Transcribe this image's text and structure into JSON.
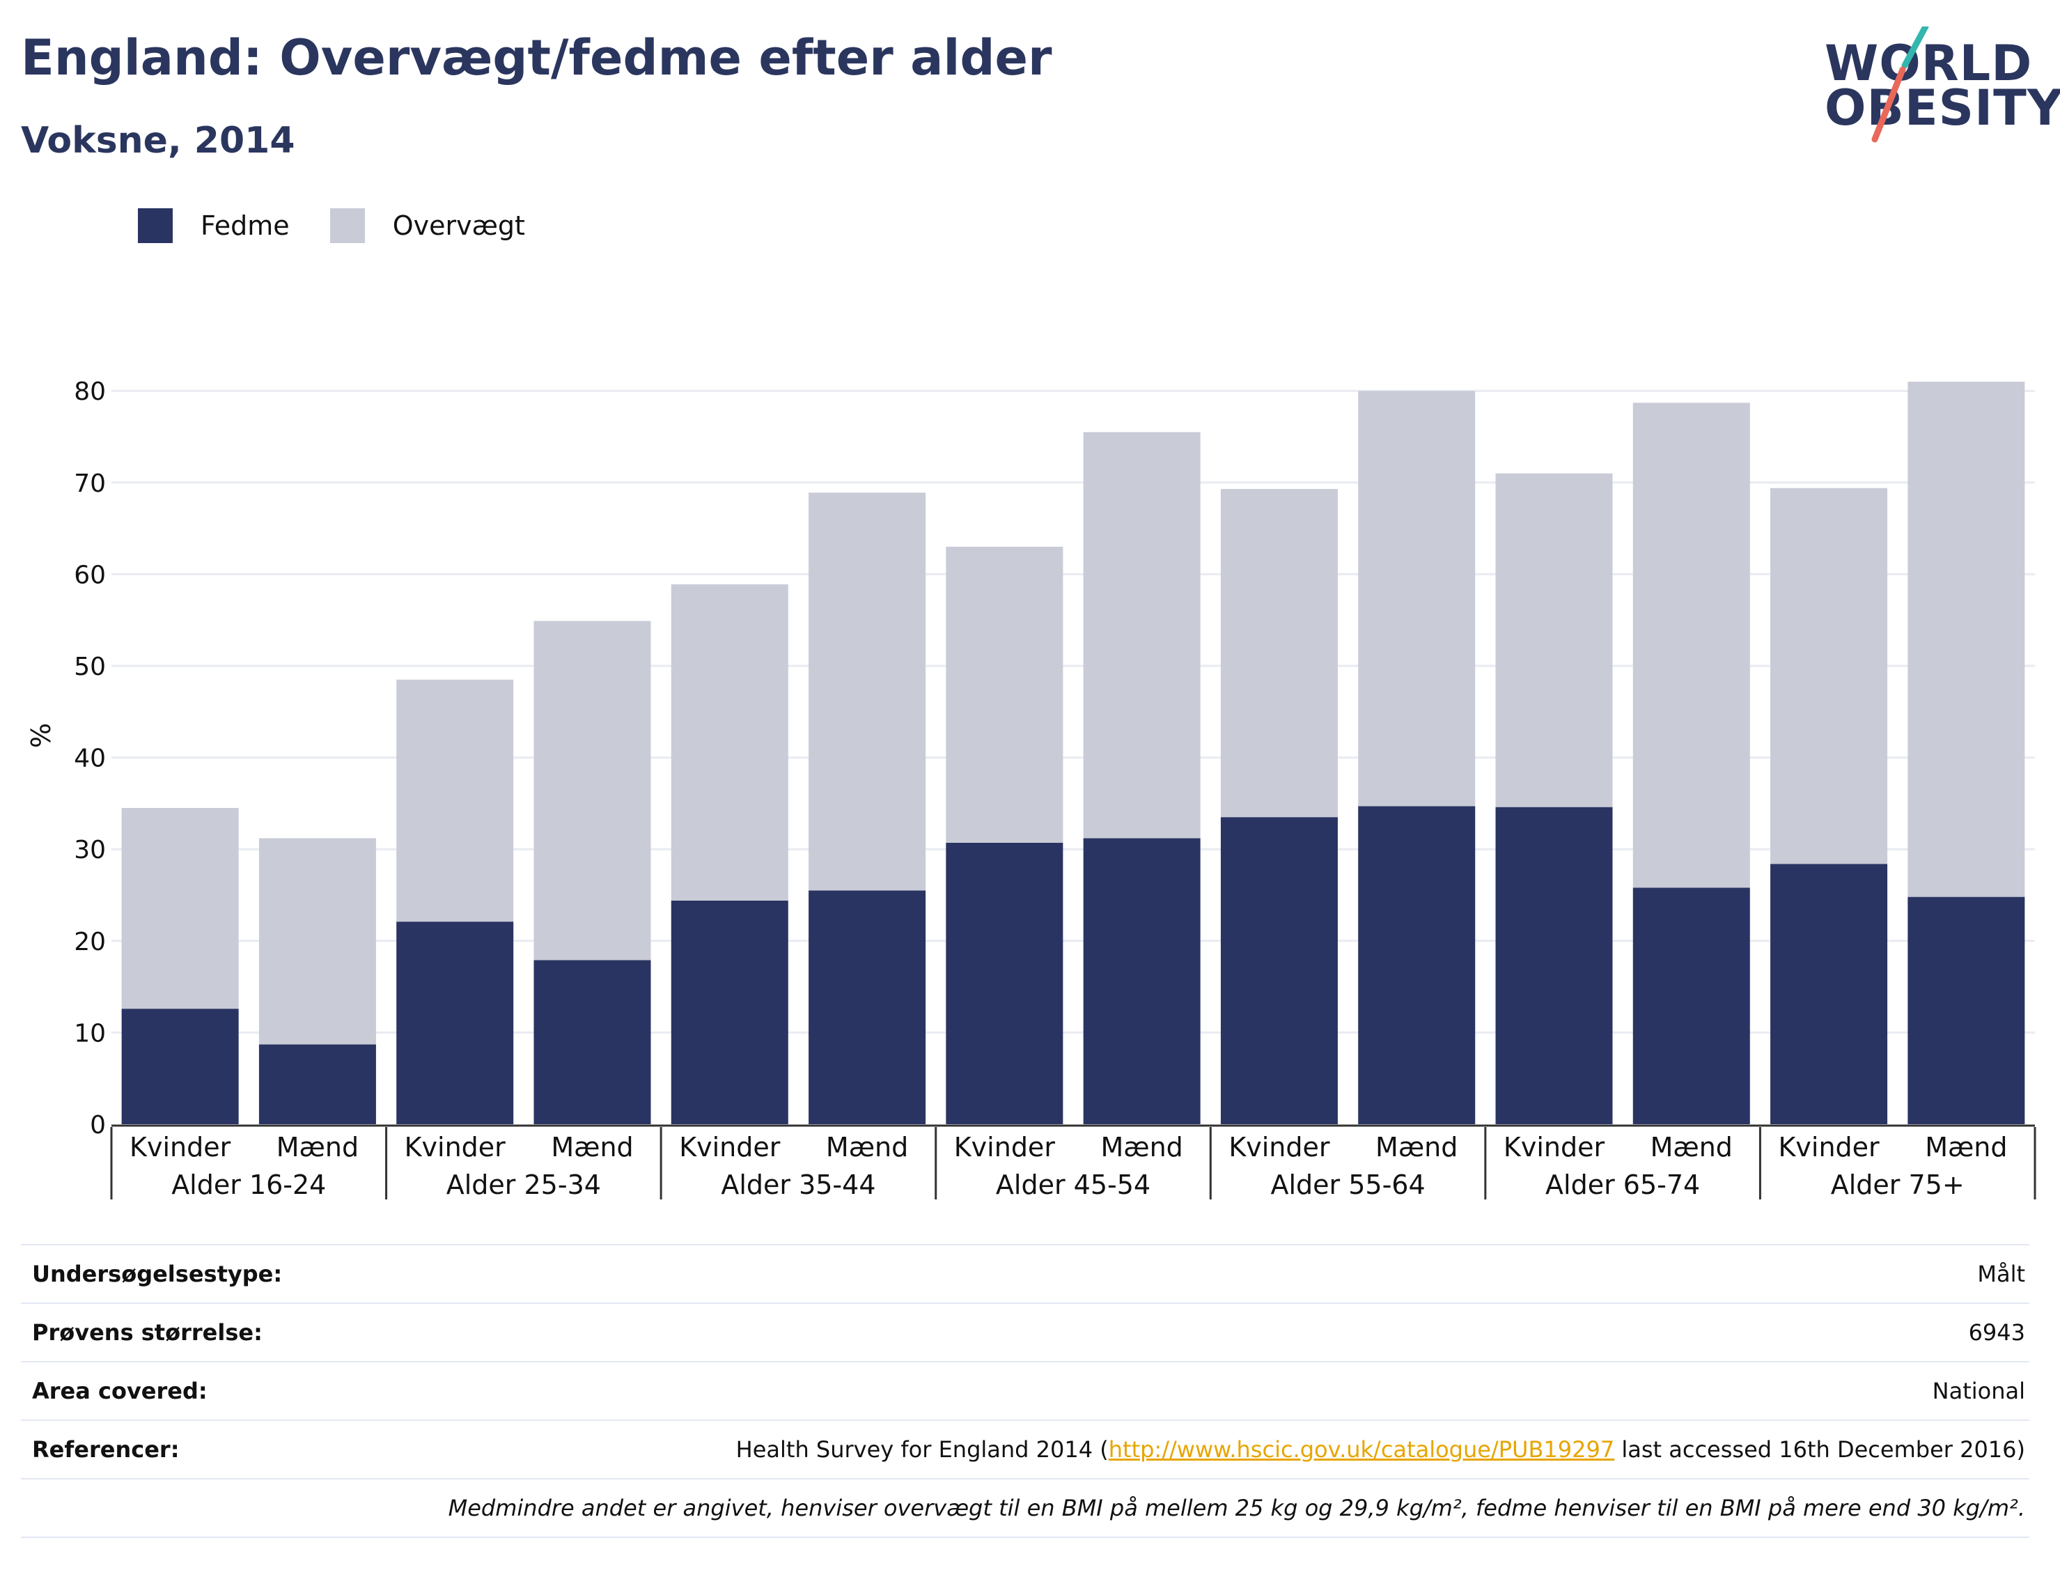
{
  "header": {
    "title": "England: Overvægt/fedme efter alder",
    "subtitle": "Voksne, 2014"
  },
  "logo": {
    "line1": "WORLD",
    "line2": "OBESITY"
  },
  "chart_data": {
    "type": "bar",
    "stacked": true,
    "ylabel": "%",
    "ylim": [
      0,
      85
    ],
    "yticks": [
      0,
      10,
      20,
      30,
      40,
      50,
      60,
      70,
      80
    ],
    "grid": true,
    "legend_position": "top-left",
    "categories": [
      "Kvinder",
      "Mænd",
      "Kvinder",
      "Mænd",
      "Kvinder",
      "Mænd",
      "Kvinder",
      "Mænd",
      "Kvinder",
      "Mænd",
      "Kvinder",
      "Mænd",
      "Kvinder",
      "Mænd"
    ],
    "groups": [
      "Alder 16-24",
      "Alder 25-34",
      "Alder 35-44",
      "Alder 45-54",
      "Alder 55-64",
      "Alder 65-74",
      "Alder 75+"
    ],
    "series": [
      {
        "name": "Fedme",
        "color": "#293462",
        "values": [
          12.6,
          8.7,
          22.1,
          17.9,
          24.4,
          25.5,
          30.7,
          31.2,
          33.5,
          34.7,
          34.6,
          25.8,
          28.4,
          24.8
        ]
      },
      {
        "name": "Overvægt",
        "color": "#c9cbd7",
        "values": [
          21.9,
          22.5,
          26.4,
          37.0,
          34.5,
          43.4,
          32.3,
          44.3,
          35.8,
          45.3,
          36.4,
          52.9,
          41.0,
          56.2
        ]
      }
    ]
  },
  "info": {
    "rows": [
      {
        "label": "Undersøgelsestype:",
        "value": "Målt"
      },
      {
        "label": "Prøvens størrelse:",
        "value": "6943"
      },
      {
        "label": "Area covered:",
        "value": "National"
      }
    ],
    "references": {
      "label": "Referencer:",
      "prefix": "Health Survey for England 2014 (",
      "link": "http://www.hscic.gov.uk/catalogue/PUB19297",
      "suffix": " last accessed 16th December 2016)"
    },
    "note": "Medmindre andet er angivet, henviser overvægt til en BMI på mellem 25 kg og 29,9 kg/m², fedme henviser til en BMI på mere end 30 kg/m²."
  }
}
